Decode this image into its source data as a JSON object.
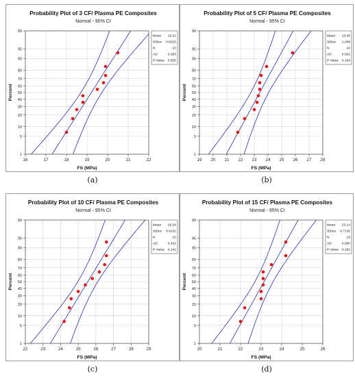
{
  "chart_data": [
    {
      "type": "scatter",
      "label": "(a)",
      "title": "Probability Plot of 3 CF/ Plasma PE Composites",
      "subtitle": "Normal - 95% CI",
      "xlabel": "FS (MPa)",
      "ylabel": "Percent",
      "xlim": [
        16,
        22
      ],
      "xticks": [
        16,
        17,
        18,
        19,
        20,
        21,
        22
      ],
      "ylim": [
        1,
        99
      ],
      "yticks": [
        1,
        5,
        10,
        20,
        30,
        40,
        50,
        60,
        70,
        80,
        90,
        95,
        99
      ],
      "stats": [
        {
          "name": "Mean",
          "value": "19.21"
        },
        {
          "name": "StDev",
          "value": "0.8215"
        },
        {
          "name": "N",
          "value": "10"
        },
        {
          "name": "AD",
          "value": "0.283"
        },
        {
          "name": "P-Value",
          "value": "0.555"
        }
      ],
      "fit": {
        "mean": 19.21,
        "sd": 0.8215,
        "n": 10
      },
      "points": [
        {
          "x": 18.0,
          "y": 6.7
        },
        {
          "x": 18.3,
          "y": 16.3
        },
        {
          "x": 18.5,
          "y": 26.0
        },
        {
          "x": 18.8,
          "y": 35.6
        },
        {
          "x": 18.8,
          "y": 45.2
        },
        {
          "x": 19.5,
          "y": 54.8
        },
        {
          "x": 19.8,
          "y": 64.4
        },
        {
          "x": 19.9,
          "y": 74.0
        },
        {
          "x": 19.9,
          "y": 83.7
        },
        {
          "x": 20.5,
          "y": 93.3
        }
      ]
    },
    {
      "type": "scatter",
      "label": "(b)",
      "title": "Probability Plot of 5 CF/ Plasma PE Composites",
      "subtitle": "Normal - 95% CI",
      "xlabel": "FS (MPa)",
      "ylabel": "Percent",
      "xlim": [
        19,
        28
      ],
      "xticks": [
        19,
        20,
        21,
        22,
        23,
        24,
        25,
        26,
        27,
        28
      ],
      "ylim": [
        1,
        99
      ],
      "yticks": [
        1,
        5,
        10,
        20,
        30,
        40,
        50,
        60,
        70,
        80,
        90,
        95,
        99
      ],
      "stats": [
        {
          "name": "Mean",
          "value": "23.40"
        },
        {
          "name": "StDev",
          "value": "1.049"
        },
        {
          "name": "N",
          "value": "10"
        },
        {
          "name": "AD",
          "value": "0.561"
        },
        {
          "name": "P-Value",
          "value": "0.109"
        }
      ],
      "fit": {
        "mean": 23.4,
        "sd": 1.049,
        "n": 10
      },
      "points": [
        {
          "x": 21.8,
          "y": 6.7
        },
        {
          "x": 22.3,
          "y": 16.3
        },
        {
          "x": 23.0,
          "y": 26.0
        },
        {
          "x": 23.2,
          "y": 35.6
        },
        {
          "x": 23.3,
          "y": 45.2
        },
        {
          "x": 23.4,
          "y": 54.8
        },
        {
          "x": 23.4,
          "y": 64.4
        },
        {
          "x": 23.5,
          "y": 74.0
        },
        {
          "x": 23.9,
          "y": 83.7
        },
        {
          "x": 25.8,
          "y": 93.3
        }
      ]
    },
    {
      "type": "scatter",
      "label": "(c)",
      "title": "Probability Plot of 10 CF/ Plasma PE Composites",
      "subtitle": "Normal - 95% CI",
      "xlabel": "FS (MPa)",
      "ylabel": "Percent",
      "xlim": [
        22,
        29
      ],
      "xticks": [
        22,
        23,
        24,
        25,
        26,
        27,
        28,
        29
      ],
      "ylim": [
        1,
        99
      ],
      "yticks": [
        1,
        5,
        10,
        20,
        30,
        40,
        50,
        60,
        70,
        80,
        90,
        95,
        99
      ],
      "stats": [
        {
          "name": "Mean",
          "value": "25.54"
        },
        {
          "name": "StDev",
          "value": "0.9131"
        },
        {
          "name": "N",
          "value": "10"
        },
        {
          "name": "AD",
          "value": "0.432"
        },
        {
          "name": "P-Value",
          "value": "0.242"
        }
      ],
      "fit": {
        "mean": 25.54,
        "sd": 0.9131,
        "n": 10
      },
      "points": [
        {
          "x": 24.2,
          "y": 6.7
        },
        {
          "x": 24.5,
          "y": 16.3
        },
        {
          "x": 24.6,
          "y": 26.0
        },
        {
          "x": 25.0,
          "y": 35.6
        },
        {
          "x": 25.4,
          "y": 45.2
        },
        {
          "x": 25.8,
          "y": 54.8
        },
        {
          "x": 26.2,
          "y": 64.4
        },
        {
          "x": 26.5,
          "y": 74.0
        },
        {
          "x": 26.6,
          "y": 83.7
        },
        {
          "x": 26.6,
          "y": 93.3
        }
      ]
    },
    {
      "type": "scatter",
      "label": "(d)",
      "title": "Probability Plot of 15 CF/ Plasma PE Composites",
      "subtitle": "Normal - 95% CI",
      "xlabel": "FS (MPa)",
      "ylabel": "Percent",
      "xlim": [
        20,
        26
      ],
      "xticks": [
        20,
        21,
        22,
        23,
        24,
        25,
        26
      ],
      "ylim": [
        1,
        99
      ],
      "yticks": [
        1,
        5,
        10,
        20,
        30,
        40,
        50,
        60,
        70,
        80,
        90,
        95,
        99
      ],
      "stats": [
        {
          "name": "Mean",
          "value": "23.14"
        },
        {
          "name": "StDev",
          "value": "0.7135"
        },
        {
          "name": "N",
          "value": "10"
        },
        {
          "name": "AD",
          "value": "0.506"
        },
        {
          "name": "P-Value",
          "value": "0.152"
        }
      ],
      "fit": {
        "mean": 23.14,
        "sd": 0.7135,
        "n": 10
      },
      "points": [
        {
          "x": 22.0,
          "y": 6.7
        },
        {
          "x": 22.2,
          "y": 16.3
        },
        {
          "x": 23.0,
          "y": 26.0
        },
        {
          "x": 23.0,
          "y": 35.6
        },
        {
          "x": 23.1,
          "y": 45.2
        },
        {
          "x": 23.1,
          "y": 54.8
        },
        {
          "x": 23.1,
          "y": 64.4
        },
        {
          "x": 23.5,
          "y": 74.0
        },
        {
          "x": 24.2,
          "y": 83.7
        },
        {
          "x": 24.2,
          "y": 93.3
        }
      ]
    }
  ],
  "style": {
    "point_color": "#ee1111",
    "line_color": "#2b2bb5",
    "grid_color": "#d4d4d4"
  }
}
